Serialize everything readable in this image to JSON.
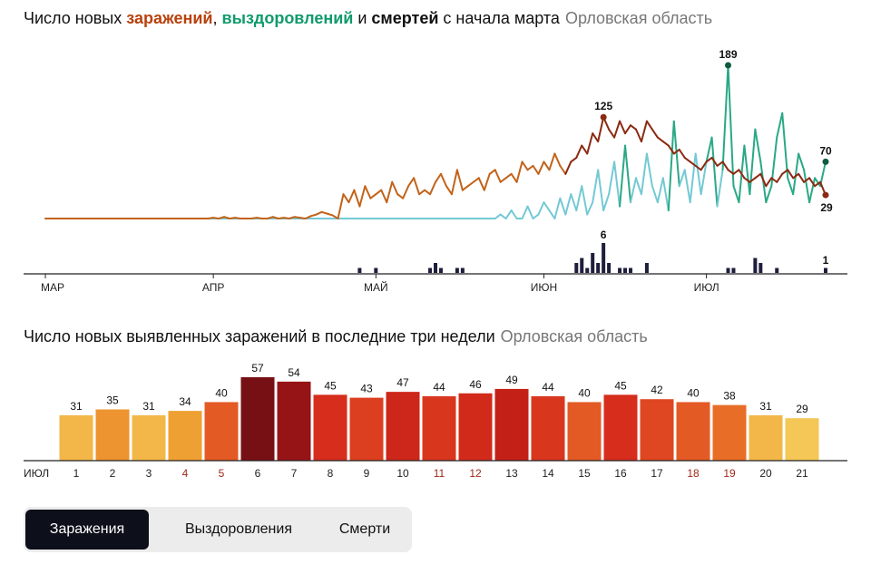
{
  "chart1": {
    "title": {
      "prefix": "Число новых ",
      "infections_word": "заражений",
      "sep1": ", ",
      "recoveries_word": "выздоровлений",
      "sep2": " и ",
      "deaths_word": "смертей",
      "suffix": " с начала марта",
      "region": "Орловская область"
    },
    "month_labels": [
      "МАР",
      "АПР",
      "МАЙ",
      "ИЮН",
      "ИЮЛ"
    ]
  },
  "chart2": {
    "title": "Число новых выявленных заражений в последние три недели",
    "region": "Орловская область",
    "month_label": "ИЮЛ"
  },
  "tabs": [
    {
      "label": "Заражения",
      "active": true
    },
    {
      "label": "Выздоровления",
      "active": false
    },
    {
      "label": "Смерти",
      "active": false
    }
  ],
  "colors": {
    "infections": "#8b2a12",
    "infections_early": "#c2631a",
    "recoveries": "#2aa886",
    "recoveries_light": "#74c9d4",
    "deaths": "#1e1e3c",
    "axis": "#222222"
  },
  "chart_data": [
    {
      "type": "line",
      "x_range": [
        "2020-03-01",
        "2020-07-21"
      ],
      "series": [
        {
          "name": "заражений",
          "values": [
            0,
            0,
            0,
            0,
            0,
            0,
            0,
            0,
            0,
            0,
            0,
            0,
            0,
            0,
            0,
            0,
            0,
            0,
            0,
            0,
            0,
            0,
            0,
            0,
            0,
            0,
            0,
            0,
            0,
            0,
            0,
            1,
            0,
            2,
            0,
            1,
            0,
            0,
            0,
            1,
            0,
            0,
            2,
            0,
            1,
            0,
            2,
            1,
            0,
            3,
            5,
            8,
            6,
            4,
            0,
            30,
            20,
            35,
            15,
            40,
            25,
            30,
            35,
            20,
            45,
            30,
            25,
            40,
            50,
            30,
            35,
            30,
            45,
            55,
            40,
            30,
            60,
            35,
            40,
            45,
            50,
            35,
            55,
            60,
            45,
            50,
            55,
            45,
            70,
            60,
            65,
            55,
            70,
            60,
            80,
            65,
            55,
            70,
            75,
            90,
            80,
            105,
            95,
            125,
            110,
            100,
            120,
            105,
            115,
            110,
            95,
            120,
            110,
            100,
            95,
            90,
            80,
            85,
            75,
            70,
            65,
            60,
            70,
            75,
            65,
            70,
            60,
            55,
            60,
            50,
            45,
            50,
            55,
            40,
            50,
            45,
            55,
            60,
            50,
            55,
            45,
            50,
            40,
            45,
            29
          ],
          "last_value": 29,
          "peak_label": 125
        },
        {
          "name": "выздоровлений",
          "values": [
            0,
            0,
            0,
            0,
            0,
            0,
            0,
            0,
            0,
            0,
            0,
            0,
            0,
            0,
            0,
            0,
            0,
            0,
            0,
            0,
            0,
            0,
            0,
            0,
            0,
            0,
            0,
            0,
            0,
            0,
            0,
            0,
            0,
            0,
            0,
            0,
            0,
            0,
            0,
            0,
            0,
            0,
            0,
            0,
            0,
            0,
            0,
            0,
            0,
            0,
            0,
            0,
            0,
            0,
            0,
            0,
            0,
            0,
            0,
            0,
            0,
            0,
            0,
            0,
            0,
            0,
            0,
            0,
            0,
            0,
            0,
            0,
            0,
            0,
            0,
            0,
            0,
            0,
            0,
            0,
            0,
            0,
            0,
            0,
            5,
            0,
            10,
            0,
            0,
            15,
            0,
            5,
            20,
            10,
            0,
            25,
            5,
            30,
            10,
            40,
            5,
            20,
            60,
            10,
            30,
            70,
            15,
            90,
            20,
            50,
            30,
            80,
            40,
            20,
            50,
            10,
            120,
            40,
            60,
            20,
            80,
            30,
            70,
            100,
            15,
            60,
            189,
            40,
            20,
            90,
            30,
            110,
            70,
            20,
            40,
            100,
            130,
            50,
            30,
            80,
            60,
            20,
            50,
            40,
            70
          ],
          "last_value": 70,
          "peak_label": 189
        },
        {
          "name": "смертей",
          "values": [
            0,
            0,
            0,
            0,
            0,
            0,
            0,
            0,
            0,
            0,
            0,
            0,
            0,
            0,
            0,
            0,
            0,
            0,
            0,
            0,
            0,
            0,
            0,
            0,
            0,
            0,
            0,
            0,
            0,
            0,
            0,
            0,
            0,
            0,
            0,
            0,
            0,
            0,
            0,
            0,
            0,
            0,
            0,
            0,
            0,
            0,
            0,
            0,
            0,
            0,
            0,
            0,
            0,
            0,
            0,
            0,
            0,
            0,
            1,
            0,
            0,
            1,
            0,
            0,
            0,
            0,
            0,
            0,
            0,
            0,
            0,
            1,
            2,
            1,
            0,
            0,
            1,
            1,
            0,
            0,
            0,
            0,
            0,
            0,
            0,
            0,
            0,
            0,
            0,
            0,
            0,
            0,
            0,
            0,
            0,
            0,
            0,
            0,
            2,
            3,
            1,
            4,
            2,
            6,
            2,
            0,
            1,
            1,
            1,
            0,
            0,
            2,
            0,
            0,
            0,
            0,
            0,
            0,
            0,
            0,
            0,
            0,
            0,
            0,
            0,
            0,
            1,
            1,
            0,
            0,
            0,
            3,
            2,
            0,
            0,
            1,
            0,
            0,
            0,
            0,
            0,
            0,
            0,
            0,
            1
          ],
          "last_value": 1,
          "peak_label": 6
        }
      ]
    },
    {
      "type": "bar",
      "categories": [
        "1",
        "2",
        "3",
        "4",
        "5",
        "6",
        "7",
        "8",
        "9",
        "10",
        "11",
        "12",
        "13",
        "14",
        "15",
        "16",
        "17",
        "18",
        "19",
        "20",
        "21"
      ],
      "values": [
        31,
        35,
        31,
        34,
        40,
        57,
        54,
        45,
        43,
        47,
        44,
        46,
        49,
        44,
        40,
        45,
        42,
        40,
        38,
        31,
        29
      ],
      "weekend_days": [
        "4",
        "5",
        "11",
        "12",
        "18",
        "19"
      ]
    }
  ]
}
